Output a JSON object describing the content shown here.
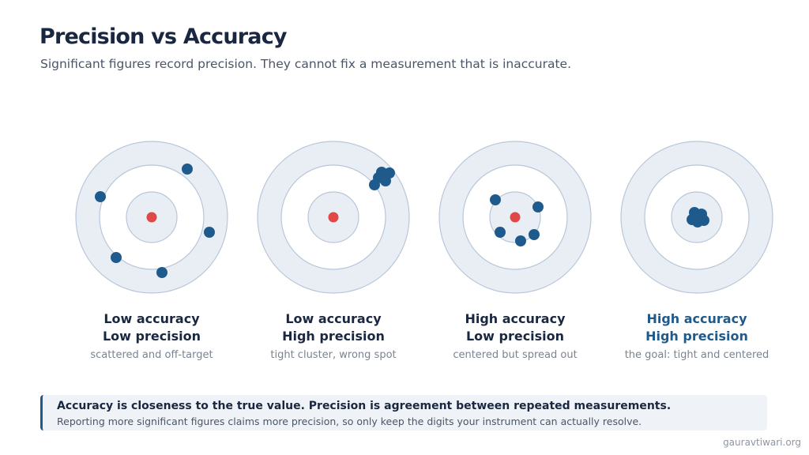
{
  "header": {
    "title": "Precision vs Accuracy",
    "subtitle": "Significant figures record precision. They cannot fix a measurement that is inaccurate."
  },
  "colors": {
    "ring_outer_fill": "#e9eef5",
    "ring_stroke": "#b8c6d8",
    "inner_fill": "#ffffff",
    "bullseye": "#e04848",
    "shot": "#1f5a8c",
    "goal_text": "#1f5a8c"
  },
  "panels": [
    {
      "line1": "Low accuracy",
      "line2": "Low precision",
      "caption": "scattered and off-target",
      "show_center": true,
      "shot_count": 5
    },
    {
      "line1": "Low accuracy",
      "line2": "High precision",
      "caption": "tight cluster, wrong spot",
      "show_center": true,
      "shot_count": 6
    },
    {
      "line1": "High accuracy",
      "line2": "Low precision",
      "caption": "centered but spread out",
      "show_center": true,
      "shot_count": 6
    },
    {
      "line1": "High accuracy",
      "line2": "High precision",
      "caption": "the goal: tight and centered",
      "show_center": false,
      "shot_count": 6,
      "highlight": true
    }
  ],
  "note": {
    "title": "Accuracy is closeness to the true value. Precision is agreement between repeated measurements.",
    "body": "Reporting more significant figures claims more precision, so only keep the digits your instrument can actually resolve."
  },
  "footer": {
    "credit": "gauravtiwari.org"
  }
}
